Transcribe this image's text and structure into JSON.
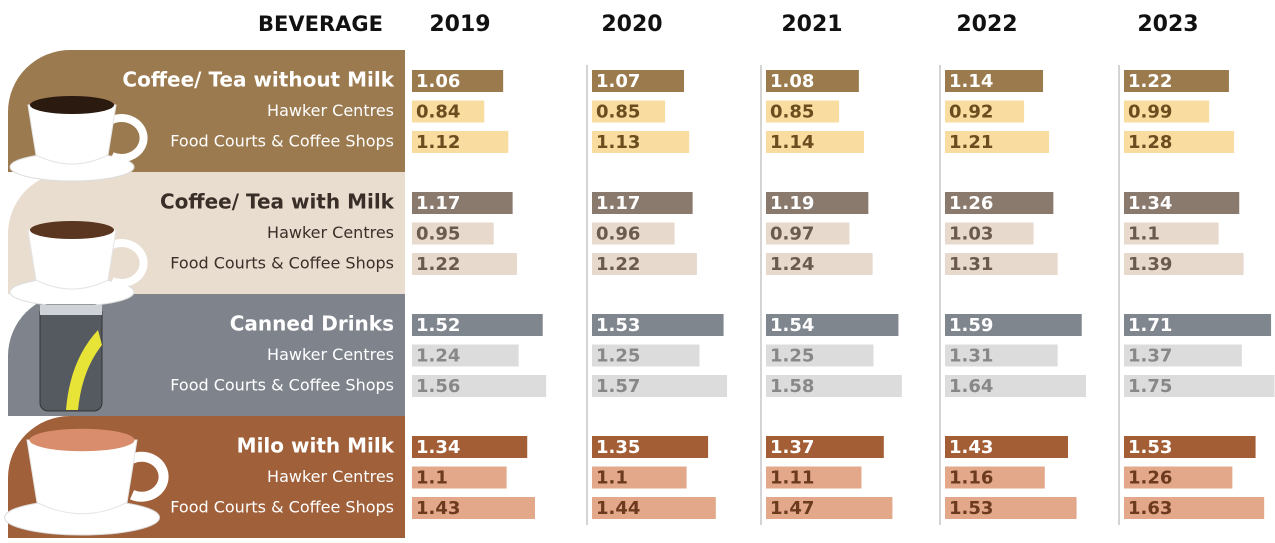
{
  "chart_data": {
    "type": "bar-table",
    "column_header": "BEVERAGE",
    "columns": [
      2019,
      2020,
      2021,
      2022,
      2023
    ],
    "groups": [
      {
        "background": "#9c7a4f",
        "label_color": "#ffffff",
        "rows": [
          {
            "label": "Coffee/ Tea without Milk",
            "color": "#9b7a4e",
            "text_color": "#ffffff",
            "values": [
              1.06,
              1.07,
              1.08,
              1.14,
              1.22
            ]
          },
          {
            "label": "Hawker Centres",
            "color": "#f8dca0",
            "text_color": "#6b4e1f",
            "values": [
              0.84,
              0.85,
              0.85,
              0.92,
              0.99
            ]
          },
          {
            "label": "Food Courts & Coffee Shops",
            "color": "#f8dca0",
            "text_color": "#6b4e1f",
            "values": [
              1.12,
              1.13,
              1.14,
              1.21,
              1.28
            ]
          }
        ]
      },
      {
        "background": "#e9ddd0",
        "label_color": "#3a2f28",
        "rows": [
          {
            "label": "Coffee/ Tea with Milk",
            "color": "#8a7a6e",
            "text_color": "#ffffff",
            "values": [
              1.17,
              1.17,
              1.19,
              1.26,
              1.34
            ]
          },
          {
            "label": "Hawker Centres",
            "color": "#e7d9cc",
            "text_color": "#6b5a4e",
            "values": [
              0.95,
              0.96,
              0.97,
              1.03,
              1.1
            ]
          },
          {
            "label": "Food Courts & Coffee Shops",
            "color": "#e7d9cc",
            "text_color": "#6b5a4e",
            "values": [
              1.22,
              1.22,
              1.24,
              1.31,
              1.39
            ]
          }
        ]
      },
      {
        "background": "#7f848c",
        "label_color": "#ffffff",
        "rows": [
          {
            "label": "Canned Drinks",
            "color": "#80868e",
            "text_color": "#ffffff",
            "values": [
              1.52,
              1.53,
              1.54,
              1.59,
              1.71
            ]
          },
          {
            "label": "Hawker Centres",
            "color": "#dcdcdc",
            "text_color": "#888888",
            "values": [
              1.24,
              1.25,
              1.25,
              1.31,
              1.37
            ]
          },
          {
            "label": "Food Courts & Coffee Shops",
            "color": "#dcdcdc",
            "text_color": "#888888",
            "values": [
              1.56,
              1.57,
              1.58,
              1.64,
              1.75
            ]
          }
        ]
      },
      {
        "background": "#a0603a",
        "label_color": "#ffffff",
        "rows": [
          {
            "label": "Milo with Milk",
            "color": "#a35e35",
            "text_color": "#ffffff",
            "values": [
              1.34,
              1.35,
              1.37,
              1.43,
              1.53
            ]
          },
          {
            "label": "Hawker Centres",
            "color": "#e3a88a",
            "text_color": "#6b3a1f",
            "values": [
              1.1,
              1.1,
              1.11,
              1.16,
              1.26
            ]
          },
          {
            "label": "Food Courts & Coffee Shops",
            "color": "#e3a88a",
            "text_color": "#6b3a1f",
            "values": [
              1.43,
              1.44,
              1.47,
              1.53,
              1.63
            ]
          }
        ]
      }
    ]
  }
}
